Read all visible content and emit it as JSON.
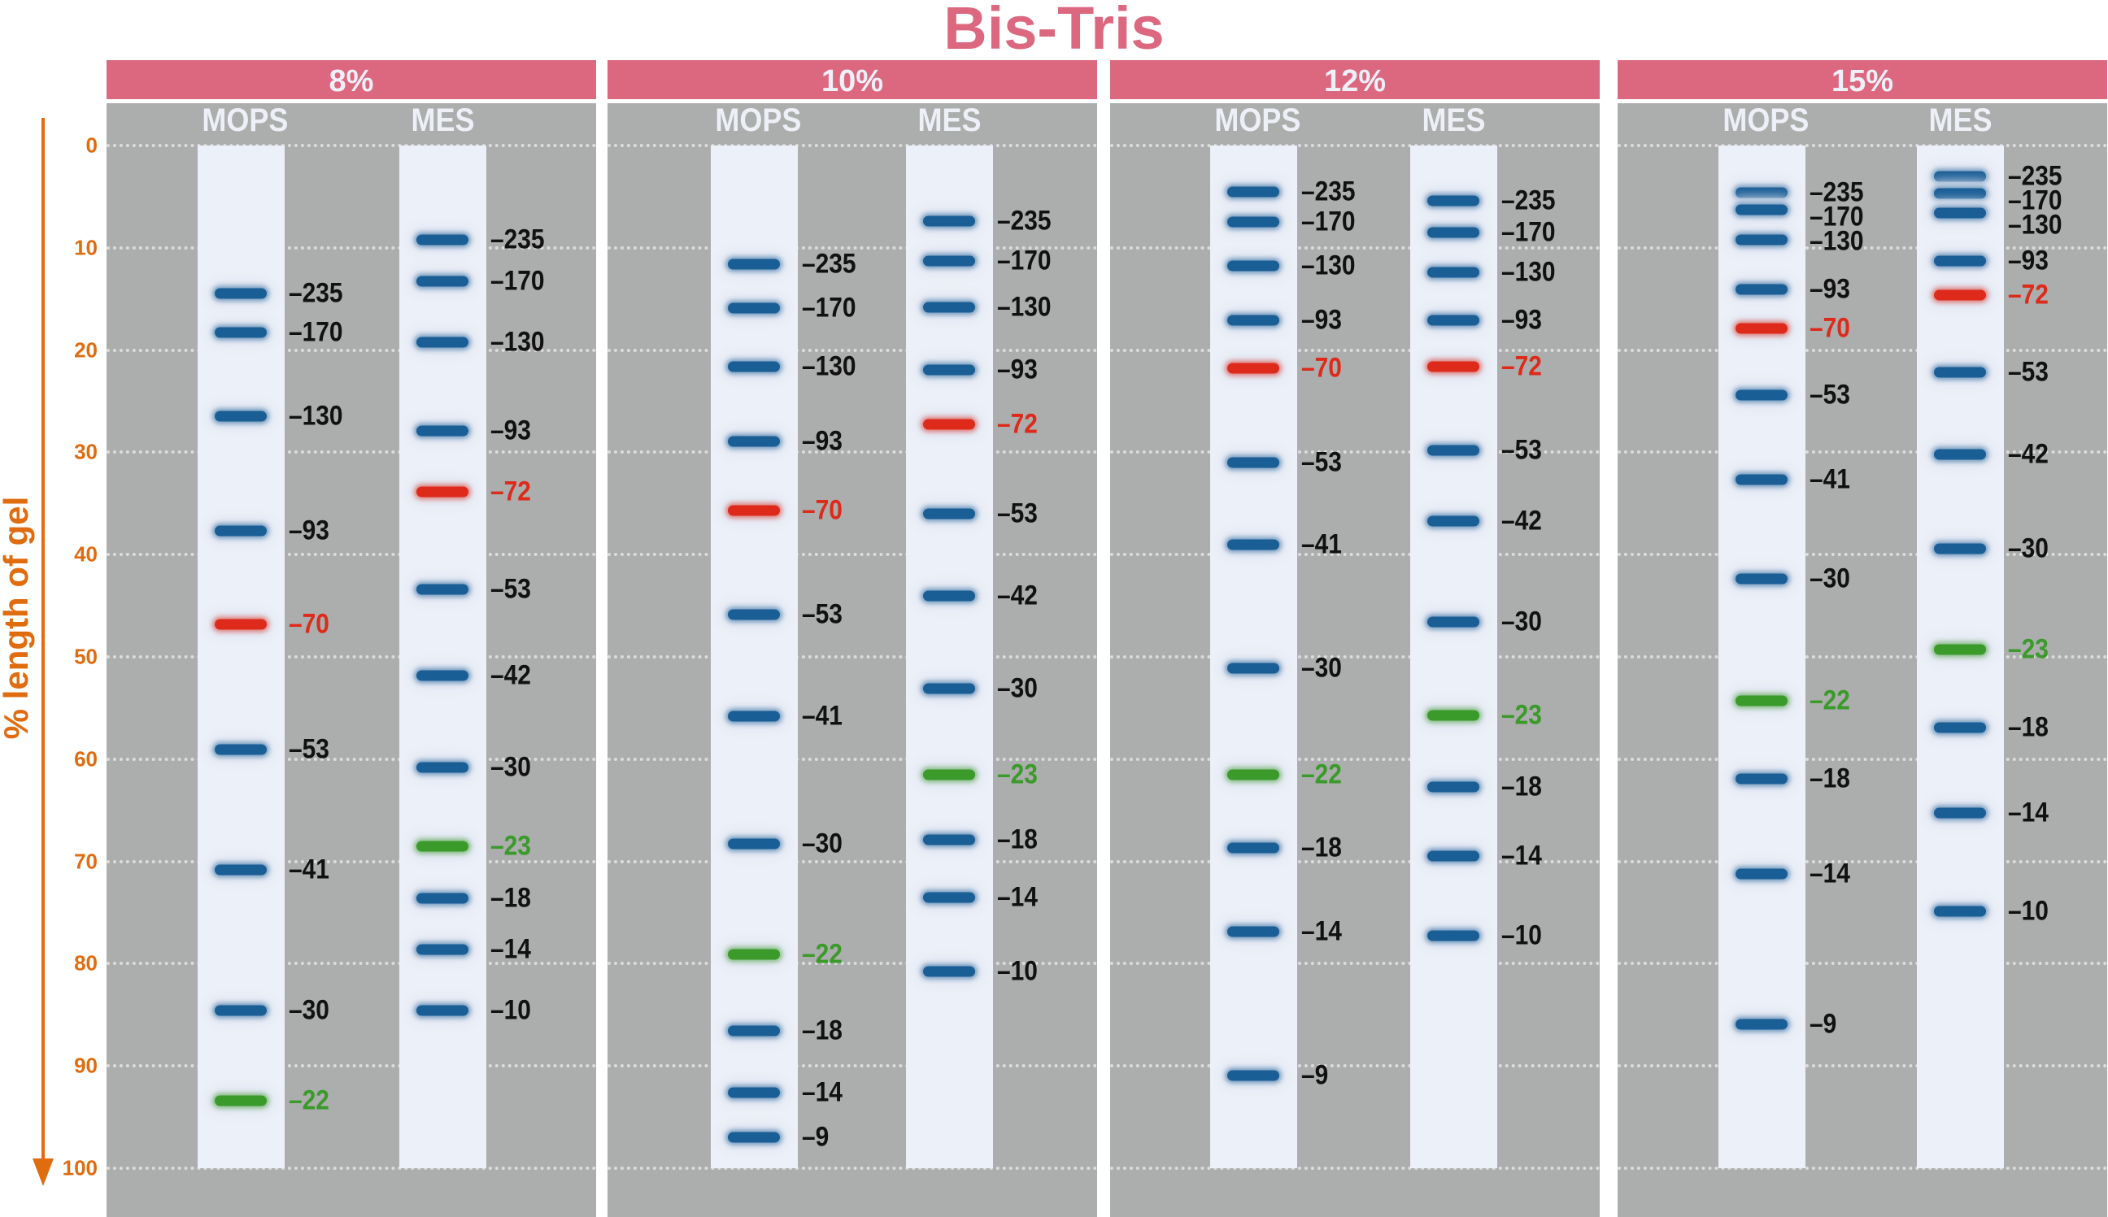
{
  "title": "Bis-Tris",
  "axis": {
    "label": "% length of gel",
    "ticks": [
      0,
      10,
      20,
      30,
      40,
      50,
      60,
      70,
      80,
      90,
      100
    ],
    "direction": "downward arrow",
    "color": "#e06c10"
  },
  "colors": {
    "header": "#dc6880",
    "gel": "#acadad",
    "lane": "#ecf0f8",
    "standard": "#1a5e96",
    "reference_red": "#dd2a1a",
    "reference_green": "#3a9a2a"
  },
  "panels": [
    {
      "label": "8%",
      "lanes": [
        {
          "label": "MOPS",
          "bands": [
            {
              "kda": "235",
              "pos": 14.5,
              "c": "blue"
            },
            {
              "kda": "170",
              "pos": 18.3,
              "c": "blue"
            },
            {
              "kda": "130",
              "pos": 26.5,
              "c": "blue"
            },
            {
              "kda": "93",
              "pos": 37.7,
              "c": "blue"
            },
            {
              "kda": "70",
              "pos": 46.8,
              "c": "red"
            },
            {
              "kda": "53",
              "pos": 59.1,
              "c": "blue"
            },
            {
              "kda": "41",
              "pos": 70.8,
              "c": "blue"
            },
            {
              "kda": "30",
              "pos": 84.6,
              "c": "blue"
            },
            {
              "kda": "22",
              "pos": 93.4,
              "c": "green"
            }
          ]
        },
        {
          "label": "MES",
          "bands": [
            {
              "kda": "235",
              "pos": 9.2,
              "c": "blue"
            },
            {
              "kda": "170",
              "pos": 13.3,
              "c": "blue"
            },
            {
              "kda": "130",
              "pos": 19.2,
              "c": "blue"
            },
            {
              "kda": "93",
              "pos": 27.9,
              "c": "blue"
            },
            {
              "kda": "72",
              "pos": 33.9,
              "c": "red"
            },
            {
              "kda": "53",
              "pos": 43.4,
              "c": "blue"
            },
            {
              "kda": "42",
              "pos": 51.8,
              "c": "blue"
            },
            {
              "kda": "30",
              "pos": 60.8,
              "c": "blue"
            },
            {
              "kda": "23",
              "pos": 68.5,
              "c": "green"
            },
            {
              "kda": "18",
              "pos": 73.6,
              "c": "blue"
            },
            {
              "kda": "14",
              "pos": 78.6,
              "c": "blue"
            },
            {
              "kda": "10",
              "pos": 84.6,
              "c": "blue"
            }
          ]
        }
      ]
    },
    {
      "label": "10%",
      "lanes": [
        {
          "label": "MOPS",
          "bands": [
            {
              "kda": "235",
              "pos": 11.6,
              "c": "blue"
            },
            {
              "kda": "170",
              "pos": 15.9,
              "c": "blue"
            },
            {
              "kda": "130",
              "pos": 21.6,
              "c": "blue"
            },
            {
              "kda": "93",
              "pos": 28.9,
              "c": "blue"
            },
            {
              "kda": "70",
              "pos": 35.7,
              "c": "red"
            },
            {
              "kda": "53",
              "pos": 45.9,
              "c": "blue"
            },
            {
              "kda": "41",
              "pos": 55.8,
              "c": "blue"
            },
            {
              "kda": "30",
              "pos": 68.3,
              "c": "blue"
            },
            {
              "kda": "22",
              "pos": 79.1,
              "c": "green"
            },
            {
              "kda": "18",
              "pos": 86.6,
              "c": "blue"
            },
            {
              "kda": "14",
              "pos": 92.6,
              "c": "blue"
            },
            {
              "kda": "9",
              "pos": 97.0,
              "c": "blue"
            }
          ]
        },
        {
          "label": "MES",
          "bands": [
            {
              "kda": "235",
              "pos": 7.4,
              "c": "blue"
            },
            {
              "kda": "170",
              "pos": 11.3,
              "c": "blue"
            },
            {
              "kda": "130",
              "pos": 15.8,
              "c": "blue"
            },
            {
              "kda": "93",
              "pos": 21.9,
              "c": "blue"
            },
            {
              "kda": "72",
              "pos": 27.3,
              "c": "red"
            },
            {
              "kda": "53",
              "pos": 36.0,
              "c": "blue"
            },
            {
              "kda": "42",
              "pos": 44.0,
              "c": "blue"
            },
            {
              "kda": "30",
              "pos": 53.1,
              "c": "blue"
            },
            {
              "kda": "23",
              "pos": 61.5,
              "c": "green"
            },
            {
              "kda": "18",
              "pos": 67.9,
              "c": "blue"
            },
            {
              "kda": "14",
              "pos": 73.5,
              "c": "blue"
            },
            {
              "kda": "10",
              "pos": 80.8,
              "c": "blue"
            }
          ]
        }
      ]
    },
    {
      "label": "12%",
      "lanes": [
        {
          "label": "MOPS",
          "bands": [
            {
              "kda": "235",
              "pos": 4.5,
              "c": "blue"
            },
            {
              "kda": "170",
              "pos": 7.5,
              "c": "blue"
            },
            {
              "kda": "130",
              "pos": 11.8,
              "c": "blue"
            },
            {
              "kda": "93",
              "pos": 17.1,
              "c": "blue"
            },
            {
              "kda": "70",
              "pos": 21.8,
              "c": "red"
            },
            {
              "kda": "53",
              "pos": 31.0,
              "c": "blue"
            },
            {
              "kda": "41",
              "pos": 39.0,
              "c": "blue"
            },
            {
              "kda": "30",
              "pos": 51.1,
              "c": "blue"
            },
            {
              "kda": "22",
              "pos": 61.5,
              "c": "green"
            },
            {
              "kda": "18",
              "pos": 68.7,
              "c": "blue"
            },
            {
              "kda": "14",
              "pos": 76.9,
              "c": "blue"
            },
            {
              "kda": "9",
              "pos": 90.9,
              "c": "blue"
            }
          ]
        },
        {
          "label": "MES",
          "bands": [
            {
              "kda": "235",
              "pos": 5.4,
              "c": "blue"
            },
            {
              "kda": "170",
              "pos": 8.5,
              "c": "blue"
            },
            {
              "kda": "130",
              "pos": 12.4,
              "c": "blue"
            },
            {
              "kda": "93",
              "pos": 17.1,
              "c": "blue"
            },
            {
              "kda": "72",
              "pos": 21.6,
              "c": "red"
            },
            {
              "kda": "53",
              "pos": 29.8,
              "c": "blue"
            },
            {
              "kda": "42",
              "pos": 36.7,
              "c": "blue"
            },
            {
              "kda": "30",
              "pos": 46.6,
              "c": "blue"
            },
            {
              "kda": "23",
              "pos": 55.7,
              "c": "green"
            },
            {
              "kda": "18",
              "pos": 62.7,
              "c": "blue"
            },
            {
              "kda": "14",
              "pos": 69.5,
              "c": "blue"
            },
            {
              "kda": "10",
              "pos": 77.3,
              "c": "blue"
            }
          ]
        }
      ]
    },
    {
      "label": "15%",
      "lanes": [
        {
          "label": "MOPS",
          "bands": [
            {
              "kda": "235",
              "pos": 4.6,
              "c": "blue"
            },
            {
              "kda": "170",
              "pos": 6.3,
              "c": "blue"
            },
            {
              "kda": "130",
              "pos": 9.2,
              "c": "blue"
            },
            {
              "kda": "93",
              "pos": 14.1,
              "c": "blue"
            },
            {
              "kda": "70",
              "pos": 17.9,
              "c": "red"
            },
            {
              "kda": "53",
              "pos": 24.4,
              "c": "blue"
            },
            {
              "kda": "41",
              "pos": 32.7,
              "c": "blue"
            },
            {
              "kda": "30",
              "pos": 42.4,
              "c": "blue"
            },
            {
              "kda": "22",
              "pos": 54.3,
              "c": "green"
            },
            {
              "kda": "18",
              "pos": 61.9,
              "c": "blue"
            },
            {
              "kda": "14",
              "pos": 71.2,
              "c": "blue"
            },
            {
              "kda": "9",
              "pos": 85.9,
              "c": "blue"
            }
          ]
        },
        {
          "label": "MES",
          "bands": [
            {
              "kda": "235",
              "pos": 3.0,
              "c": "blue"
            },
            {
              "kda": "170",
              "pos": 4.7,
              "c": "blue"
            },
            {
              "kda": "130",
              "pos": 6.6,
              "c": "blue"
            },
            {
              "kda": "93",
              "pos": 11.3,
              "c": "blue"
            },
            {
              "kda": "72",
              "pos": 14.6,
              "c": "red"
            },
            {
              "kda": "53",
              "pos": 22.2,
              "c": "blue"
            },
            {
              "kda": "42",
              "pos": 30.2,
              "c": "blue"
            },
            {
              "kda": "30",
              "pos": 39.4,
              "c": "blue"
            },
            {
              "kda": "23",
              "pos": 49.3,
              "c": "green"
            },
            {
              "kda": "18",
              "pos": 56.9,
              "c": "blue"
            },
            {
              "kda": "14",
              "pos": 65.3,
              "c": "blue"
            },
            {
              "kda": "10",
              "pos": 74.9,
              "c": "blue"
            }
          ]
        }
      ]
    }
  ]
}
